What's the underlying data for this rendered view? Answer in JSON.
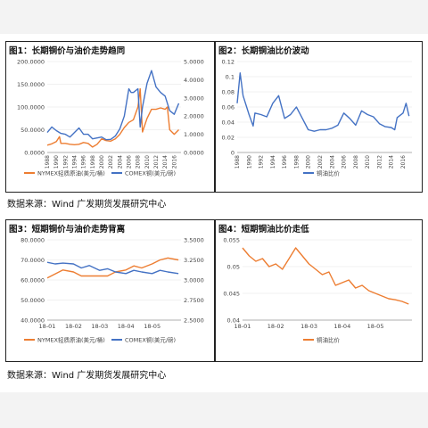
{
  "colors": {
    "oil": "#ed7d31",
    "copper": "#4472c4",
    "ratio": "#4472c4",
    "ratio_short": "#ed7d31"
  },
  "footer1": "数据来源：Wind 广发期货发展研究中心",
  "footer2": "数据来源：Wind 广发期货发展研究中心",
  "chart_data": [
    {
      "type": "line",
      "title": "图1：长期铜价与油价走势趋同",
      "x_ticks": [
        "1988",
        "1990",
        "1992",
        "1994",
        "1996",
        "1998",
        "2000",
        "2002",
        "2004",
        "2006",
        "2008",
        "2010",
        "2012",
        "2014",
        "2016"
      ],
      "x_range": [
        1988,
        2017.5
      ],
      "y_left": {
        "ticks": [
          "0.0000",
          "50.0000",
          "100.0000",
          "150.0000",
          "200.0000"
        ],
        "range": [
          0,
          200
        ]
      },
      "y_right": {
        "ticks": [
          "0.0000",
          "1.0000",
          "2.0000",
          "3.0000",
          "4.0000",
          "5.0000"
        ],
        "range": [
          0,
          5
        ]
      },
      "legend_position": "bottom",
      "series": [
        {
          "name": "NYMEX轻质原油(美元/桶)",
          "axis": "left",
          "x": [
            1988,
            1989,
            1990,
            1990.7,
            1991,
            1992,
            1993,
            1994,
            1995,
            1996,
            1997,
            1998,
            1999,
            2000,
            2001,
            2002,
            2003,
            2004,
            2005,
            2006,
            2007,
            2008,
            2008.5,
            2009,
            2010,
            2011,
            2012,
            2013,
            2014,
            2014.5,
            2015,
            2016,
            2017
          ],
          "y": [
            16,
            19,
            24,
            35,
            20,
            20,
            18,
            17,
            18,
            22,
            20,
            12,
            18,
            30,
            26,
            25,
            30,
            40,
            55,
            66,
            72,
            100,
            140,
            45,
            75,
            95,
            95,
            98,
            95,
            100,
            50,
            40,
            50
          ]
        },
        {
          "name": "COMEX铜(美元/磅)",
          "axis": "right",
          "x": [
            1988,
            1989,
            1990,
            1991,
            1992,
            1993,
            1994,
            1995,
            1996,
            1997,
            1998,
            1999,
            2000,
            2001,
            2002,
            2003,
            2004,
            2005,
            2006,
            2006.5,
            2007,
            2008,
            2008.5,
            2009,
            2010,
            2011,
            2012,
            2013,
            2014,
            2015,
            2016,
            2017
          ],
          "y": [
            1.1,
            1.4,
            1.2,
            1.05,
            1.0,
            0.85,
            1.1,
            1.35,
            1.0,
            1.0,
            0.75,
            0.8,
            0.85,
            0.7,
            0.72,
            0.9,
            1.3,
            2.0,
            3.5,
            3.3,
            3.3,
            3.5,
            1.4,
            2.5,
            3.8,
            4.5,
            3.6,
            3.3,
            3.1,
            2.3,
            2.1,
            2.7
          ]
        }
      ]
    },
    {
      "type": "line",
      "title": "图2：长期铜油比价波动",
      "x_ticks": [
        "1988",
        "1990",
        "1992",
        "1994",
        "1996",
        "1998",
        "2000",
        "2002",
        "2004",
        "2006",
        "2008",
        "2010",
        "2012",
        "2014",
        "2016"
      ],
      "x_range": [
        1988,
        2017.5
      ],
      "y_left": {
        "ticks": [
          "0",
          "0.02",
          "0.04",
          "0.06",
          "0.08",
          "0.1",
          "0.12"
        ],
        "range": [
          0,
          0.12
        ]
      },
      "legend_position": "bottom",
      "series": [
        {
          "name": "铜油比价",
          "x": [
            1988,
            1988.5,
            1989,
            1990,
            1990.7,
            1991,
            1992,
            1993,
            1994,
            1995,
            1996,
            1997,
            1998,
            1999,
            2000,
            2001,
            2002,
            2003,
            2004,
            2005,
            2006,
            2007,
            2008,
            2009,
            2010,
            2011,
            2012,
            2013,
            2014,
            2014.6,
            2015,
            2016,
            2016.5,
            2017
          ],
          "y": [
            0.065,
            0.105,
            0.075,
            0.05,
            0.035,
            0.052,
            0.05,
            0.047,
            0.065,
            0.075,
            0.045,
            0.05,
            0.06,
            0.045,
            0.03,
            0.028,
            0.03,
            0.03,
            0.032,
            0.036,
            0.052,
            0.045,
            0.036,
            0.055,
            0.05,
            0.047,
            0.038,
            0.034,
            0.033,
            0.03,
            0.046,
            0.052,
            0.065,
            0.048
          ]
        }
      ]
    },
    {
      "type": "line",
      "title": "图3：短期铜价与油价走势背离",
      "x_ticks": [
        "18-01",
        "18-02",
        "18-03",
        "18-04",
        "18-05"
      ],
      "x_range": [
        0,
        5.1
      ],
      "y_left": {
        "ticks": [
          "40.0000",
          "50.0000",
          "60.0000",
          "70.0000",
          "80.0000"
        ],
        "range": [
          40,
          80
        ]
      },
      "y_right": {
        "ticks": [
          "2.5000",
          "2.7500",
          "3.0000",
          "3.2500",
          "3.5000"
        ],
        "range": [
          2.5,
          3.5
        ]
      },
      "legend_position": "bottom",
      "series": [
        {
          "name": "NYMEX轻质原油(美元/桶)",
          "axis": "left",
          "x": [
            0,
            0.3,
            0.6,
            1.0,
            1.3,
            1.6,
            2.0,
            2.3,
            2.6,
            3.0,
            3.3,
            3.6,
            4.0,
            4.3,
            4.6,
            5.0
          ],
          "y": [
            61,
            63,
            65,
            64,
            62,
            62,
            62,
            62,
            64,
            65,
            67,
            66,
            68,
            70,
            71,
            70
          ]
        },
        {
          "name": "COMEX铜(美元/磅)",
          "axis": "right",
          "x": [
            0,
            0.3,
            0.6,
            1.0,
            1.3,
            1.6,
            2.0,
            2.3,
            2.6,
            3.0,
            3.3,
            3.6,
            4.0,
            4.3,
            4.6,
            5.0
          ],
          "y": [
            3.22,
            3.2,
            3.21,
            3.2,
            3.15,
            3.18,
            3.12,
            3.14,
            3.1,
            3.08,
            3.12,
            3.1,
            3.08,
            3.12,
            3.1,
            3.08
          ]
        }
      ]
    },
    {
      "type": "line",
      "title": "图4：短期铜油比价走低",
      "x_ticks": [
        "18-01",
        "18-02",
        "18-03",
        "18-04",
        "18-05"
      ],
      "x_range": [
        0,
        5.1
      ],
      "y_left": {
        "ticks": [
          "0.04",
          "0.045",
          "0.05",
          "0.055"
        ],
        "range": [
          0.04,
          0.055
        ]
      },
      "legend_position": "bottom",
      "series": [
        {
          "name": "铜油比价",
          "x": [
            0,
            0.2,
            0.4,
            0.6,
            0.8,
            1.0,
            1.2,
            1.4,
            1.6,
            1.8,
            2.0,
            2.2,
            2.4,
            2.6,
            2.8,
            3.0,
            3.2,
            3.4,
            3.6,
            3.8,
            4.0,
            4.2,
            4.4,
            4.6,
            4.8,
            5.0
          ],
          "y": [
            0.0535,
            0.052,
            0.051,
            0.0515,
            0.05,
            0.0505,
            0.0495,
            0.0515,
            0.0535,
            0.052,
            0.0505,
            0.0495,
            0.0485,
            0.049,
            0.0465,
            0.047,
            0.0475,
            0.046,
            0.0465,
            0.0455,
            0.045,
            0.0445,
            0.044,
            0.0438,
            0.0435,
            0.043
          ]
        }
      ]
    }
  ]
}
